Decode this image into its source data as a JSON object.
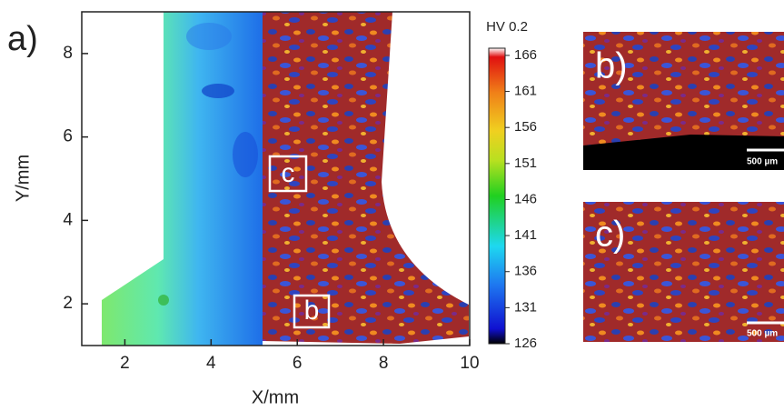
{
  "chart_data": {
    "type": "contour",
    "panel_label": "a)",
    "xlabel": "X/mm",
    "ylabel": "Y/mm",
    "xlim": [
      1,
      10
    ],
    "xticks": [
      2,
      4,
      6,
      8,
      10
    ],
    "ylim": [
      1,
      9
    ],
    "yticks": [
      2,
      4,
      6,
      8
    ],
    "colorbar": {
      "label": "HV 0.2",
      "lim": [
        126,
        167
      ],
      "ticks": [
        126,
        131,
        136,
        141,
        146,
        151,
        156,
        161,
        166
      ]
    },
    "region_labels": [
      "c",
      "b"
    ]
  },
  "insets": [
    {
      "label": "b)",
      "scale_bar": "500 µm"
    },
    {
      "label": "c)",
      "scale_bar": "500 µm"
    }
  ]
}
